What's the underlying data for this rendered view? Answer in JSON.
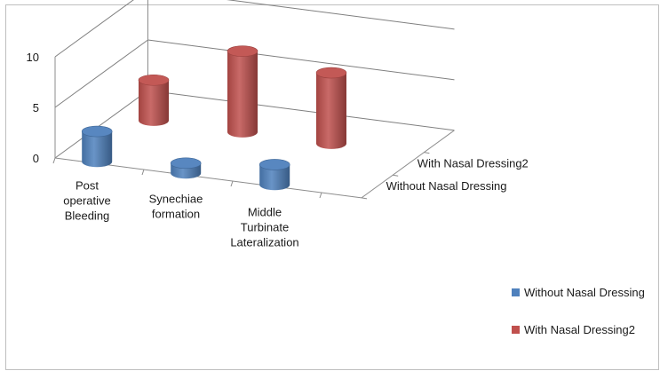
{
  "chart_data": {
    "type": "bar",
    "style": "3d-cylinder",
    "categories": [
      "Post operative Bleeding",
      "Synechiae formation",
      "Middle Turbinate Lateralization"
    ],
    "category_lines": [
      [
        "Post",
        "operative",
        "Bleeding"
      ],
      [
        "Synechiae",
        "formation"
      ],
      [
        "Middle",
        "Turbinate",
        "Lateralization"
      ]
    ],
    "series": [
      {
        "name": "Without Nasal Dressing",
        "values": [
          3,
          1,
          2
        ],
        "color": "#4f81bd"
      },
      {
        "name": "With Nasal Dressing2",
        "values": [
          4,
          8,
          7
        ],
        "color": "#c0504d"
      }
    ],
    "depth_labels": [
      "With Nasal Dressing2",
      "Without Nasal Dressing"
    ],
    "y_ticks": [
      "0",
      "5",
      "10"
    ],
    "ylim": [
      0,
      10
    ],
    "grid": true,
    "legend_position": "right"
  }
}
